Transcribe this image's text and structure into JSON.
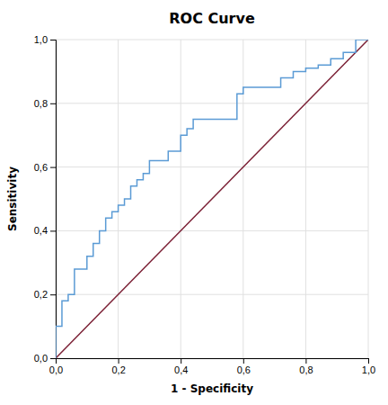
{
  "chart_data": {
    "type": "line",
    "title": "ROC Curve",
    "xlabel": "1 - Specificity",
    "ylabel": "Sensitivity",
    "xlim": [
      0,
      1
    ],
    "ylim": [
      0,
      1
    ],
    "xticks": [
      {
        "value": 0.0,
        "label": "0,0"
      },
      {
        "value": 0.2,
        "label": "0,2"
      },
      {
        "value": 0.4,
        "label": "0,4"
      },
      {
        "value": 0.6,
        "label": "0,6"
      },
      {
        "value": 0.8,
        "label": "0,8"
      },
      {
        "value": 1.0,
        "label": "1,0"
      }
    ],
    "yticks": [
      {
        "value": 0.0,
        "label": "0,0"
      },
      {
        "value": 0.2,
        "label": "0,2"
      },
      {
        "value": 0.4,
        "label": "0,4"
      },
      {
        "value": 0.6,
        "label": "0,6"
      },
      {
        "value": 0.8,
        "label": "0,8"
      },
      {
        "value": 1.0,
        "label": "1,0"
      }
    ],
    "grid": true,
    "series": [
      {
        "color": "#7b2035",
        "x": [
          0,
          1
        ],
        "values": [
          0,
          1
        ]
      },
      {
        "color": "#5b9bd5",
        "x": [
          0.0,
          0.0,
          0.02,
          0.02,
          0.04,
          0.04,
          0.06,
          0.06,
          0.1,
          0.1,
          0.12,
          0.12,
          0.14,
          0.14,
          0.16,
          0.16,
          0.18,
          0.18,
          0.2,
          0.2,
          0.22,
          0.22,
          0.24,
          0.24,
          0.26,
          0.26,
          0.28,
          0.28,
          0.3,
          0.3,
          0.36,
          0.36,
          0.4,
          0.4,
          0.42,
          0.42,
          0.44,
          0.44,
          0.58,
          0.58,
          0.6,
          0.6,
          0.72,
          0.72,
          0.76,
          0.76,
          0.8,
          0.8,
          0.84,
          0.84,
          0.88,
          0.88,
          0.92,
          0.92,
          0.96,
          0.96,
          1.0
        ],
        "values": [
          0.0,
          0.1,
          0.1,
          0.18,
          0.18,
          0.2,
          0.2,
          0.28,
          0.28,
          0.32,
          0.32,
          0.36,
          0.36,
          0.4,
          0.4,
          0.44,
          0.44,
          0.46,
          0.46,
          0.48,
          0.48,
          0.5,
          0.5,
          0.54,
          0.54,
          0.56,
          0.56,
          0.58,
          0.58,
          0.62,
          0.62,
          0.65,
          0.65,
          0.7,
          0.7,
          0.72,
          0.72,
          0.75,
          0.75,
          0.83,
          0.83,
          0.85,
          0.85,
          0.88,
          0.88,
          0.9,
          0.9,
          0.91,
          0.91,
          0.92,
          0.92,
          0.94,
          0.94,
          0.96,
          0.96,
          1.0,
          1.0
        ]
      }
    ]
  }
}
